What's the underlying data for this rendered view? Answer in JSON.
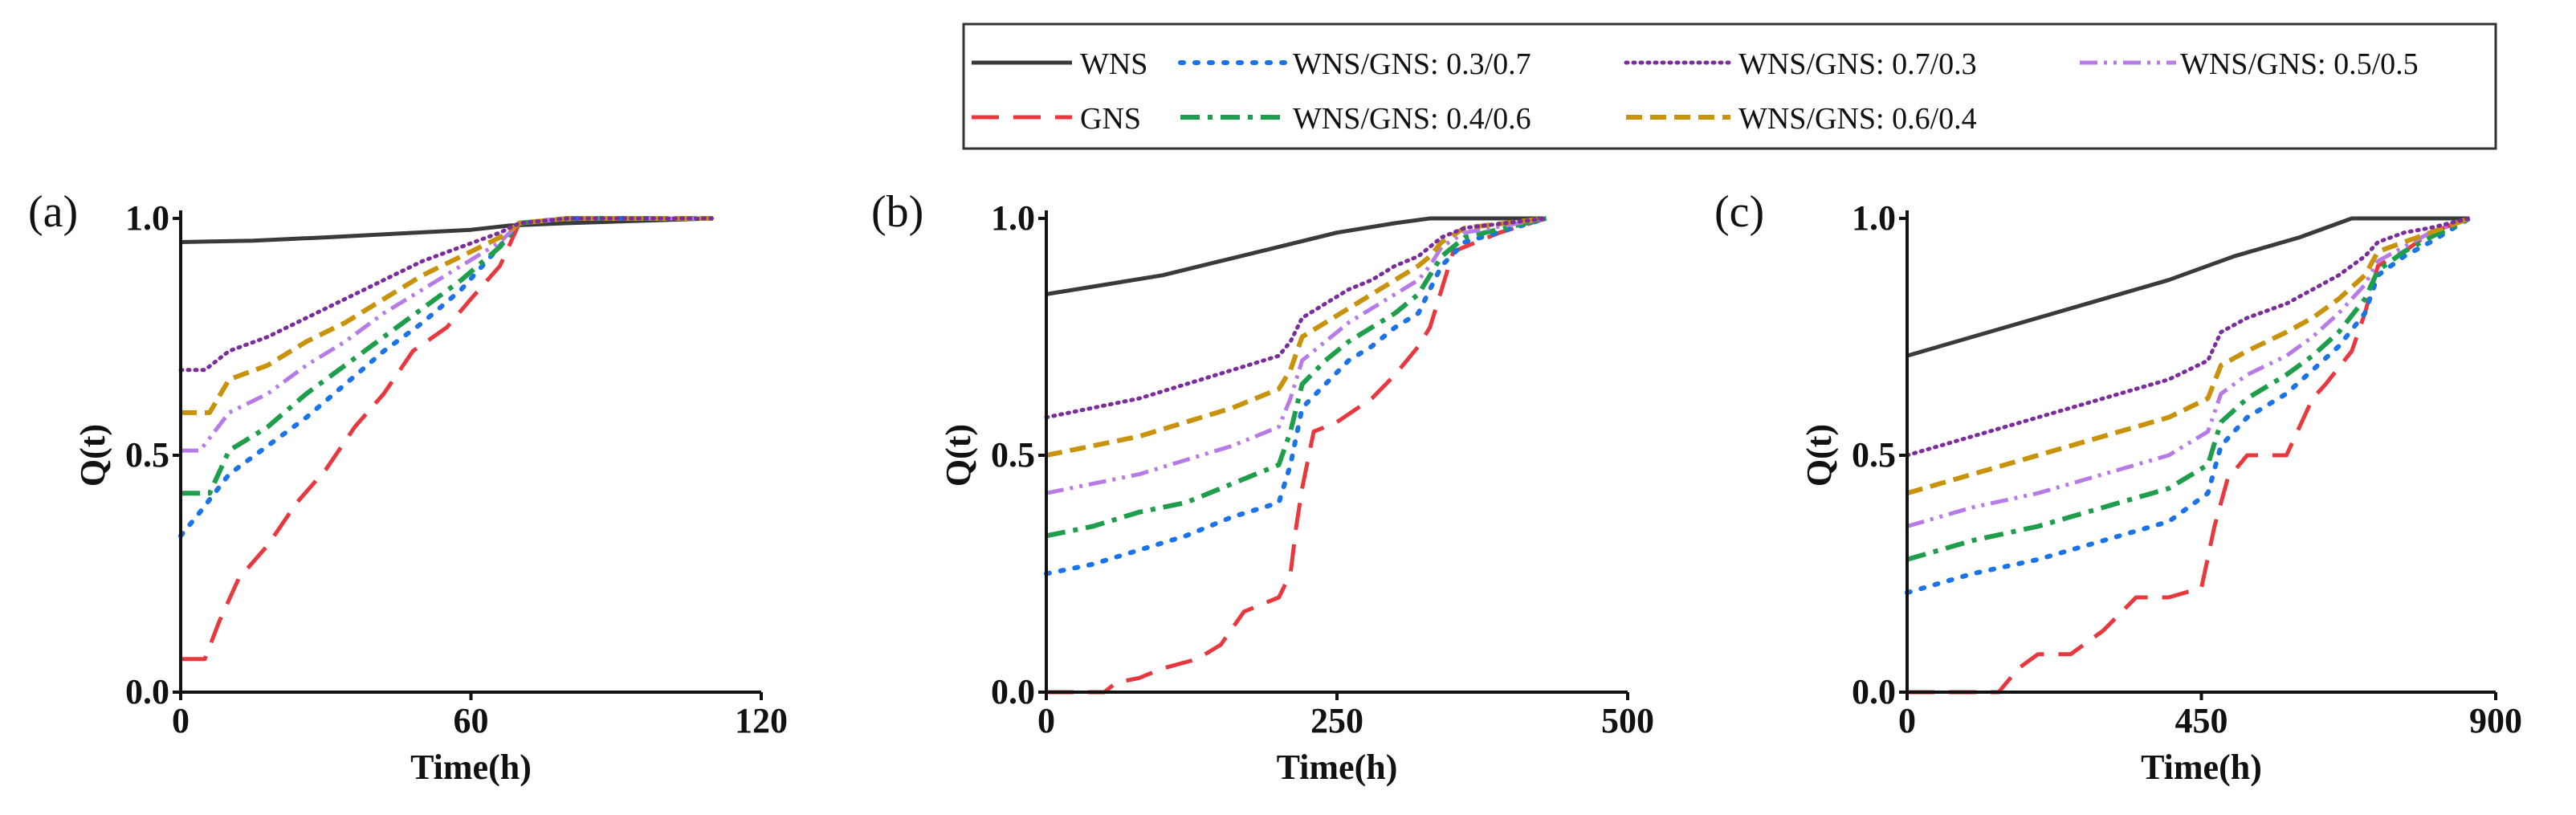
{
  "chart_data": [
    {
      "type": "line",
      "panel_label": "(a)",
      "xlabel": "Time(h)",
      "ylabel": "Q(t)",
      "xlim": [
        0,
        120
      ],
      "ylim": [
        0,
        1
      ],
      "xticks": [
        "0",
        "60",
        "120"
      ],
      "yticks": [
        "0.0",
        "0.5",
        "1.0"
      ],
      "grid": false,
      "series": [
        {
          "name": "WNS",
          "x": [
            0,
            15,
            30,
            45,
            60,
            68,
            80,
            110
          ],
          "y": [
            0.95,
            0.953,
            0.96,
            0.968,
            0.976,
            0.985,
            0.99,
            1.0
          ]
        },
        {
          "name": "GNS",
          "x": [
            0,
            5,
            8,
            12,
            18,
            24,
            30,
            36,
            42,
            48,
            55,
            60,
            66,
            70,
            80,
            110
          ],
          "y": [
            0.07,
            0.07,
            0.15,
            0.24,
            0.31,
            0.4,
            0.47,
            0.56,
            0.63,
            0.72,
            0.77,
            0.83,
            0.9,
            0.99,
            1.0,
            1.0
          ]
        },
        {
          "name": "WNS/GNS: 0.3/0.7",
          "x": [
            0,
            4,
            10,
            18,
            26,
            34,
            42,
            50,
            58,
            65,
            70,
            80,
            110
          ],
          "y": [
            0.33,
            0.38,
            0.46,
            0.52,
            0.58,
            0.65,
            0.72,
            0.78,
            0.85,
            0.93,
            0.99,
            1.0,
            1.0
          ]
        },
        {
          "name": "WNS/GNS: 0.4/0.6",
          "x": [
            0,
            6,
            10,
            18,
            26,
            34,
            42,
            50,
            58,
            66,
            70,
            80,
            110
          ],
          "y": [
            0.42,
            0.42,
            0.51,
            0.56,
            0.63,
            0.69,
            0.75,
            0.81,
            0.87,
            0.94,
            0.99,
            1.0,
            1.0
          ]
        },
        {
          "name": "WNS/GNS: 0.5/0.5",
          "x": [
            0,
            4,
            10,
            18,
            26,
            34,
            42,
            50,
            58,
            66,
            70,
            80,
            110
          ],
          "y": [
            0.51,
            0.51,
            0.59,
            0.63,
            0.69,
            0.74,
            0.8,
            0.85,
            0.9,
            0.95,
            0.99,
            1.0,
            1.0
          ]
        },
        {
          "name": "WNS/GNS: 0.6/0.4",
          "x": [
            0,
            6,
            10,
            18,
            26,
            34,
            42,
            50,
            58,
            66,
            70,
            80,
            110
          ],
          "y": [
            0.59,
            0.59,
            0.66,
            0.69,
            0.74,
            0.78,
            0.83,
            0.88,
            0.92,
            0.96,
            0.99,
            1.0,
            1.0
          ]
        },
        {
          "name": "WNS/GNS: 0.7/0.3",
          "x": [
            0,
            5,
            10,
            18,
            26,
            34,
            42,
            50,
            58,
            66,
            70,
            80,
            110
          ],
          "y": [
            0.68,
            0.68,
            0.72,
            0.75,
            0.79,
            0.83,
            0.87,
            0.91,
            0.94,
            0.97,
            0.99,
            1.0,
            1.0
          ]
        }
      ]
    },
    {
      "type": "line",
      "panel_label": "(b)",
      "xlabel": "Time(h)",
      "ylabel": "Q(t)",
      "xlim": [
        0,
        500
      ],
      "ylim": [
        0,
        1
      ],
      "xticks": [
        "0",
        "250",
        "500"
      ],
      "yticks": [
        "0.0",
        "0.5",
        "1.0"
      ],
      "grid": false,
      "series": [
        {
          "name": "WNS",
          "x": [
            0,
            50,
            100,
            150,
            200,
            250,
            300,
            330,
            360,
            430
          ],
          "y": [
            0.84,
            0.86,
            0.88,
            0.91,
            0.94,
            0.97,
            0.99,
            1.0,
            1.0,
            1.0
          ]
        },
        {
          "name": "GNS",
          "x": [
            0,
            50,
            60,
            80,
            100,
            130,
            150,
            170,
            200,
            210,
            215,
            220,
            230,
            250,
            280,
            300,
            320,
            330,
            340,
            350,
            390,
            430
          ],
          "y": [
            0.0,
            0.0,
            0.02,
            0.03,
            0.05,
            0.07,
            0.1,
            0.17,
            0.2,
            0.25,
            0.35,
            0.43,
            0.55,
            0.57,
            0.62,
            0.67,
            0.73,
            0.77,
            0.85,
            0.93,
            0.97,
            1.0
          ]
        },
        {
          "name": "WNS/GNS: 0.3/0.7",
          "x": [
            0,
            40,
            80,
            120,
            160,
            200,
            210,
            220,
            240,
            260,
            280,
            300,
            320,
            330,
            340,
            360,
            430
          ],
          "y": [
            0.25,
            0.27,
            0.3,
            0.33,
            0.37,
            0.4,
            0.48,
            0.6,
            0.65,
            0.7,
            0.73,
            0.77,
            0.8,
            0.85,
            0.9,
            0.95,
            1.0
          ]
        },
        {
          "name": "WNS/GNS: 0.4/0.6",
          "x": [
            0,
            40,
            80,
            120,
            160,
            200,
            210,
            220,
            240,
            260,
            280,
            300,
            320,
            330,
            340,
            360,
            430
          ],
          "y": [
            0.33,
            0.35,
            0.38,
            0.4,
            0.44,
            0.48,
            0.55,
            0.65,
            0.7,
            0.74,
            0.77,
            0.8,
            0.84,
            0.88,
            0.92,
            0.96,
            1.0
          ]
        },
        {
          "name": "WNS/GNS: 0.5/0.5",
          "x": [
            0,
            40,
            80,
            120,
            160,
            200,
            210,
            220,
            240,
            260,
            280,
            300,
            320,
            330,
            340,
            360,
            430
          ],
          "y": [
            0.42,
            0.44,
            0.46,
            0.49,
            0.52,
            0.56,
            0.62,
            0.7,
            0.74,
            0.78,
            0.81,
            0.84,
            0.87,
            0.9,
            0.94,
            0.97,
            1.0
          ]
        },
        {
          "name": "WNS/GNS: 0.6/0.4",
          "x": [
            0,
            40,
            80,
            120,
            160,
            200,
            210,
            220,
            240,
            260,
            280,
            300,
            320,
            330,
            340,
            360,
            430
          ],
          "y": [
            0.5,
            0.52,
            0.54,
            0.57,
            0.6,
            0.64,
            0.68,
            0.75,
            0.78,
            0.81,
            0.84,
            0.87,
            0.9,
            0.92,
            0.95,
            0.98,
            1.0
          ]
        },
        {
          "name": "WNS/GNS: 0.7/0.3",
          "x": [
            0,
            40,
            80,
            120,
            160,
            200,
            210,
            220,
            240,
            260,
            280,
            300,
            320,
            330,
            340,
            360,
            430
          ],
          "y": [
            0.58,
            0.6,
            0.62,
            0.65,
            0.68,
            0.71,
            0.74,
            0.79,
            0.82,
            0.85,
            0.87,
            0.9,
            0.92,
            0.94,
            0.96,
            0.98,
            1.0
          ]
        }
      ]
    },
    {
      "type": "line",
      "panel_label": "(c)",
      "xlabel": "Time(h)",
      "ylabel": "Q(t)",
      "xlim": [
        0,
        900
      ],
      "ylim": [
        0,
        1
      ],
      "xticks": [
        "0",
        "450",
        "900"
      ],
      "yticks": [
        "0.0",
        "0.5",
        "1.0"
      ],
      "grid": false,
      "series": [
        {
          "name": "WNS",
          "x": [
            0,
            100,
            200,
            300,
            400,
            500,
            600,
            680,
            750,
            860
          ],
          "y": [
            0.71,
            0.75,
            0.79,
            0.83,
            0.87,
            0.92,
            0.96,
            1.0,
            1.0,
            1.0
          ]
        },
        {
          "name": "GNS",
          "x": [
            0,
            140,
            170,
            200,
            250,
            300,
            350,
            400,
            450,
            470,
            490,
            520,
            580,
            620,
            640,
            680,
            700,
            720,
            760,
            800,
            860
          ],
          "y": [
            0.0,
            0.0,
            0.05,
            0.08,
            0.08,
            0.13,
            0.2,
            0.2,
            0.22,
            0.35,
            0.45,
            0.5,
            0.5,
            0.62,
            0.65,
            0.72,
            0.8,
            0.9,
            0.93,
            0.97,
            1.0
          ]
        },
        {
          "name": "WNS/GNS: 0.3/0.7",
          "x": [
            0,
            50,
            100,
            200,
            300,
            400,
            460,
            480,
            520,
            580,
            620,
            660,
            700,
            720,
            760,
            800,
            860
          ],
          "y": [
            0.21,
            0.23,
            0.25,
            0.28,
            0.32,
            0.36,
            0.42,
            0.52,
            0.58,
            0.63,
            0.68,
            0.73,
            0.8,
            0.88,
            0.92,
            0.95,
            1.0
          ]
        },
        {
          "name": "WNS/GNS: 0.4/0.6",
          "x": [
            0,
            50,
            100,
            200,
            300,
            400,
            460,
            480,
            520,
            580,
            620,
            660,
            700,
            720,
            760,
            800,
            860
          ],
          "y": [
            0.28,
            0.3,
            0.32,
            0.35,
            0.39,
            0.43,
            0.48,
            0.57,
            0.62,
            0.67,
            0.71,
            0.76,
            0.83,
            0.89,
            0.93,
            0.96,
            1.0
          ]
        },
        {
          "name": "WNS/GNS: 0.5/0.5",
          "x": [
            0,
            50,
            100,
            200,
            300,
            400,
            460,
            480,
            520,
            580,
            620,
            660,
            700,
            720,
            760,
            800,
            860
          ],
          "y": [
            0.35,
            0.37,
            0.39,
            0.42,
            0.46,
            0.5,
            0.55,
            0.63,
            0.67,
            0.71,
            0.75,
            0.8,
            0.86,
            0.91,
            0.94,
            0.97,
            1.0
          ]
        },
        {
          "name": "WNS/GNS: 0.6/0.4",
          "x": [
            0,
            50,
            100,
            200,
            300,
            400,
            460,
            480,
            520,
            580,
            620,
            660,
            700,
            720,
            760,
            800,
            860
          ],
          "y": [
            0.42,
            0.44,
            0.46,
            0.5,
            0.54,
            0.58,
            0.62,
            0.69,
            0.72,
            0.76,
            0.79,
            0.83,
            0.88,
            0.93,
            0.95,
            0.97,
            1.0
          ]
        },
        {
          "name": "WNS/GNS: 0.7/0.3",
          "x": [
            0,
            50,
            100,
            200,
            300,
            400,
            460,
            480,
            520,
            580,
            620,
            660,
            700,
            720,
            760,
            800,
            860
          ],
          "y": [
            0.5,
            0.52,
            0.54,
            0.58,
            0.62,
            0.66,
            0.7,
            0.76,
            0.79,
            0.82,
            0.85,
            0.88,
            0.92,
            0.95,
            0.97,
            0.98,
            1.0
          ]
        }
      ]
    }
  ],
  "legend": {
    "items": [
      {
        "name": "WNS",
        "color": "#3a3a3a",
        "dash": "solid"
      },
      {
        "name": "WNS/GNS: 0.3/0.7",
        "color": "#1a73e8",
        "dash": "dot"
      },
      {
        "name": "WNS/GNS: 0.7/0.3",
        "color": "#7b2d9e",
        "dash": "fine-dot"
      },
      {
        "name": "WNS/GNS: 0.5/0.5",
        "color": "#b77be8",
        "dash": "dash-dot-dot"
      },
      {
        "name": "GNS",
        "color": "#e8383d",
        "dash": "long-dash"
      },
      {
        "name": "WNS/GNS: 0.4/0.6",
        "color": "#1e9e4a",
        "dash": "dash-dot"
      },
      {
        "name": "WNS/GNS: 0.6/0.4",
        "color": "#c8930a",
        "dash": "dash"
      }
    ]
  }
}
